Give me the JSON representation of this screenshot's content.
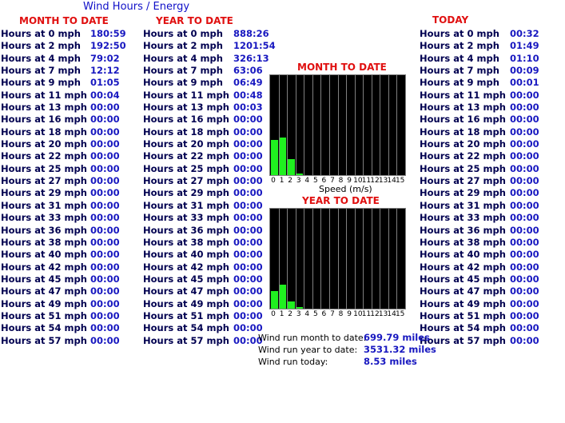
{
  "title": "Wind Hours / Energy",
  "colors": {
    "header": "#e01010",
    "value": "#1818c0",
    "label": "#000050",
    "bar": "#20f020",
    "chart_bg": "#000000"
  },
  "month": {
    "heading": "MONTH TO DATE",
    "rows": [
      [
        "Hours at 0 mph",
        "180:59"
      ],
      [
        "Hours at 2 mph",
        "192:50"
      ],
      [
        "Hours at 4 mph",
        "79:02"
      ],
      [
        "Hours at 7 mph",
        "12:12"
      ],
      [
        "Hours at 9 mph",
        "01:05"
      ],
      [
        "Hours at 11 mph",
        "00:04"
      ],
      [
        "Hours at 13 mph",
        "00:00"
      ],
      [
        "Hours at 16 mph",
        "00:00"
      ],
      [
        "Hours at 18 mph",
        "00:00"
      ],
      [
        "Hours at 20 mph",
        "00:00"
      ],
      [
        "Hours at 22 mph",
        "00:00"
      ],
      [
        "Hours at 25 mph",
        "00:00"
      ],
      [
        "Hours at 27 mph",
        "00:00"
      ],
      [
        "Hours at 29 mph",
        "00:00"
      ],
      [
        "Hours at 31 mph",
        "00:00"
      ],
      [
        "Hours at 33 mph",
        "00:00"
      ],
      [
        "Hours at 36 mph",
        "00:00"
      ],
      [
        "Hours at 38 mph",
        "00:00"
      ],
      [
        "Hours at 40 mph",
        "00:00"
      ],
      [
        "Hours at 42 mph",
        "00:00"
      ],
      [
        "Hours at 45 mph",
        "00:00"
      ],
      [
        "Hours at 47 mph",
        "00:00"
      ],
      [
        "Hours at 49 mph",
        "00:00"
      ],
      [
        "Hours at 51 mph",
        "00:00"
      ],
      [
        "Hours at 54 mph",
        "00:00"
      ],
      [
        "Hours at 57 mph",
        "00:00"
      ]
    ]
  },
  "year": {
    "heading": "YEAR TO DATE",
    "rows": [
      [
        "Hours at 0 mph",
        "888:26"
      ],
      [
        "Hours at 2 mph",
        "1201:54"
      ],
      [
        "Hours at 4 mph",
        "326:13"
      ],
      [
        "Hours at 7 mph",
        "63:06"
      ],
      [
        "Hours at 9 mph",
        "06:49"
      ],
      [
        "Hours at 11 mph",
        "00:48"
      ],
      [
        "Hours at 13 mph",
        "00:03"
      ],
      [
        "Hours at 16 mph",
        "00:00"
      ],
      [
        "Hours at 18 mph",
        "00:00"
      ],
      [
        "Hours at 20 mph",
        "00:00"
      ],
      [
        "Hours at 22 mph",
        "00:00"
      ],
      [
        "Hours at 25 mph",
        "00:00"
      ],
      [
        "Hours at 27 mph",
        "00:00"
      ],
      [
        "Hours at 29 mph",
        "00:00"
      ],
      [
        "Hours at 31 mph",
        "00:00"
      ],
      [
        "Hours at 33 mph",
        "00:00"
      ],
      [
        "Hours at 36 mph",
        "00:00"
      ],
      [
        "Hours at 38 mph",
        "00:00"
      ],
      [
        "Hours at 40 mph",
        "00:00"
      ],
      [
        "Hours at 42 mph",
        "00:00"
      ],
      [
        "Hours at 45 mph",
        "00:00"
      ],
      [
        "Hours at 47 mph",
        "00:00"
      ],
      [
        "Hours at 49 mph",
        "00:00"
      ],
      [
        "Hours at 51 mph",
        "00:00"
      ],
      [
        "Hours at 54 mph",
        "00:00"
      ],
      [
        "Hours at 57 mph",
        "00:00"
      ]
    ]
  },
  "today": {
    "heading": "TODAY",
    "rows": [
      [
        "Hours at 0 mph",
        "00:32"
      ],
      [
        "Hours at 2 mph",
        "01:49"
      ],
      [
        "Hours at 4 mph",
        "01:10"
      ],
      [
        "Hours at 7 mph",
        "00:09"
      ],
      [
        "Hours at 9 mph",
        "00:01"
      ],
      [
        "Hours at 11 mph",
        "00:00"
      ],
      [
        "Hours at 13 mph",
        "00:00"
      ],
      [
        "Hours at 16 mph",
        "00:00"
      ],
      [
        "Hours at 18 mph",
        "00:00"
      ],
      [
        "Hours at 20 mph",
        "00:00"
      ],
      [
        "Hours at 22 mph",
        "00:00"
      ],
      [
        "Hours at 25 mph",
        "00:00"
      ],
      [
        "Hours at 27 mph",
        "00:00"
      ],
      [
        "Hours at 29 mph",
        "00:00"
      ],
      [
        "Hours at 31 mph",
        "00:00"
      ],
      [
        "Hours at 33 mph",
        "00:00"
      ],
      [
        "Hours at 36 mph",
        "00:00"
      ],
      [
        "Hours at 38 mph",
        "00:00"
      ],
      [
        "Hours at 40 mph",
        "00:00"
      ],
      [
        "Hours at 42 mph",
        "00:00"
      ],
      [
        "Hours at 45 mph",
        "00:00"
      ],
      [
        "Hours at 47 mph",
        "00:00"
      ],
      [
        "Hours at 49 mph",
        "00:00"
      ],
      [
        "Hours at 51 mph",
        "00:00"
      ],
      [
        "Hours at 54 mph",
        "00:00"
      ],
      [
        "Hours at 57 mph",
        "00:00"
      ]
    ]
  },
  "chart_data": [
    {
      "type": "bar",
      "title": "MONTH TO DATE",
      "xlabel": "Speed (m/s)",
      "categories": [
        "0",
        "1",
        "2",
        "3",
        "4",
        "5",
        "6",
        "7",
        "8",
        "9",
        "10",
        "11",
        "12",
        "13",
        "14",
        "15"
      ],
      "values": [
        0.35,
        0.38,
        0.16,
        0.02,
        0,
        0,
        0,
        0,
        0,
        0,
        0,
        0,
        0,
        0,
        0,
        0
      ],
      "grid": true
    },
    {
      "type": "bar",
      "title": "YEAR TO DATE",
      "xlabel": "",
      "categories": [
        "0",
        "1",
        "2",
        "3",
        "4",
        "5",
        "6",
        "7",
        "8",
        "9",
        "10",
        "11",
        "12",
        "13",
        "14",
        "15"
      ],
      "values": [
        0.18,
        0.24,
        0.07,
        0.02,
        0,
        0,
        0,
        0,
        0,
        0,
        0,
        0,
        0,
        0,
        0,
        0
      ],
      "grid": true
    }
  ],
  "wind_run": [
    {
      "label": "Wind run month to date:",
      "value": "699.79 miles"
    },
    {
      "label": "Wind run year to date:",
      "value": "3531.32 miles"
    },
    {
      "label": "Wind run today:",
      "value": "8.53 miles"
    }
  ]
}
